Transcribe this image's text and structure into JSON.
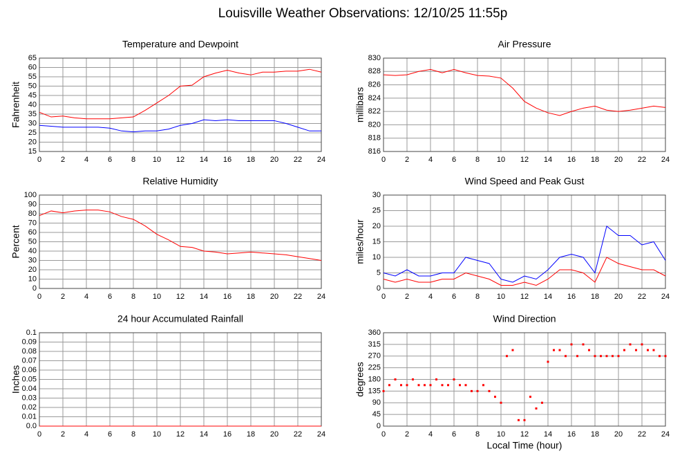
{
  "title": "Louisville Weather Observations: 12/10/25 11:55p",
  "chart_data": [
    {
      "type": "line",
      "title": "Temperature and Dewpoint",
      "ylabel": "Fahrenheit",
      "x": [
        0,
        1,
        2,
        3,
        4,
        5,
        6,
        7,
        8,
        9,
        10,
        11,
        12,
        13,
        14,
        15,
        16,
        17,
        18,
        19,
        20,
        21,
        22,
        23,
        24
      ],
      "series": [
        {
          "color": "#ff0000",
          "values": [
            36,
            33.5,
            34,
            33,
            32.5,
            32.5,
            32.5,
            33,
            33.5,
            37,
            41,
            45,
            50,
            50.5,
            55,
            57,
            58.5,
            57,
            56,
            57.5,
            57.5,
            58,
            58,
            59,
            57.5
          ]
        },
        {
          "color": "#0000ff",
          "values": [
            29,
            28.5,
            28,
            28,
            28,
            28,
            27.5,
            26,
            25.5,
            26,
            26,
            27,
            29,
            30,
            32,
            31.5,
            32,
            31.5,
            31.5,
            31.5,
            31.5,
            30,
            28,
            26,
            26
          ]
        }
      ],
      "xlim": [
        0,
        24
      ],
      "xticks": [
        0,
        2,
        4,
        6,
        8,
        10,
        12,
        14,
        16,
        18,
        20,
        22,
        24
      ],
      "ylim": [
        15,
        65
      ],
      "yticks": [
        15,
        20,
        25,
        30,
        35,
        40,
        45,
        50,
        55,
        60,
        65
      ],
      "grid": true
    },
    {
      "type": "line",
      "title": "Air Pressure",
      "ylabel": "millibars",
      "x": [
        0,
        1,
        2,
        3,
        4,
        5,
        6,
        7,
        8,
        9,
        10,
        11,
        12,
        13,
        14,
        15,
        16,
        17,
        18,
        19,
        20,
        21,
        22,
        23,
        24
      ],
      "series": [
        {
          "color": "#ff0000",
          "values": [
            827.5,
            827.4,
            827.5,
            828,
            828.3,
            827.8,
            828.3,
            827.8,
            827.4,
            827.3,
            827,
            825.5,
            823.5,
            822.5,
            821.8,
            821.4,
            822,
            822.5,
            822.8,
            822.2,
            822,
            822.2,
            822.5,
            822.8,
            822.6
          ]
        }
      ],
      "xlim": [
        0,
        24
      ],
      "xticks": [
        0,
        2,
        4,
        6,
        8,
        10,
        12,
        14,
        16,
        18,
        20,
        22,
        24
      ],
      "ylim": [
        816,
        830
      ],
      "yticks": [
        816,
        818,
        820,
        822,
        824,
        826,
        828,
        830
      ],
      "grid": true
    },
    {
      "type": "line",
      "title": "Relative Humidity",
      "ylabel": "Percent",
      "x": [
        0,
        1,
        2,
        3,
        4,
        5,
        6,
        7,
        8,
        9,
        10,
        11,
        12,
        13,
        14,
        15,
        16,
        17,
        18,
        19,
        20,
        21,
        22,
        23,
        24
      ],
      "series": [
        {
          "color": "#ff0000",
          "values": [
            78,
            83,
            81,
            83,
            84,
            84,
            82,
            77,
            74,
            67,
            58,
            52,
            45,
            44,
            40,
            39,
            37,
            38,
            39,
            38,
            37,
            36,
            34,
            32,
            30
          ]
        }
      ],
      "xlim": [
        0,
        24
      ],
      "xticks": [
        0,
        2,
        4,
        6,
        8,
        10,
        12,
        14,
        16,
        18,
        20,
        22,
        24
      ],
      "ylim": [
        0,
        100
      ],
      "yticks": [
        0,
        10,
        20,
        30,
        40,
        50,
        60,
        70,
        80,
        90,
        100
      ],
      "grid": true
    },
    {
      "type": "line",
      "title": "Wind Speed and Peak Gust",
      "ylabel": "miles/hour",
      "x": [
        0,
        1,
        2,
        3,
        4,
        5,
        6,
        7,
        8,
        9,
        10,
        11,
        12,
        13,
        14,
        15,
        16,
        17,
        18,
        19,
        20,
        21,
        22,
        23,
        24
      ],
      "series": [
        {
          "color": "#0000ff",
          "values": [
            5,
            4,
            6,
            4,
            4,
            5,
            5,
            10,
            9,
            8,
            3,
            2,
            4,
            3,
            6,
            10,
            11,
            10,
            5,
            20,
            17,
            17,
            14,
            15,
            9
          ]
        },
        {
          "color": "#ff0000",
          "values": [
            3,
            2,
            3,
            2,
            2,
            3,
            3,
            5,
            4,
            3,
            1,
            1,
            2,
            1,
            3,
            6,
            6,
            5,
            2,
            10,
            8,
            7,
            6,
            6,
            4
          ]
        }
      ],
      "xlim": [
        0,
        24
      ],
      "xticks": [
        0,
        2,
        4,
        6,
        8,
        10,
        12,
        14,
        16,
        18,
        20,
        22,
        24
      ],
      "ylim": [
        0,
        30
      ],
      "yticks": [
        0,
        5,
        10,
        15,
        20,
        25,
        30
      ],
      "grid": true
    },
    {
      "type": "line",
      "title": "24 hour Accumulated Rainfall",
      "ylabel": "Inches",
      "x": [
        0,
        1,
        2,
        3,
        4,
        5,
        6,
        7,
        8,
        9,
        10,
        11,
        12,
        13,
        14,
        15,
        16,
        17,
        18,
        19,
        20,
        21,
        22,
        23,
        24
      ],
      "series": [
        {
          "color": "#ff0000",
          "values": [
            0,
            0,
            0,
            0,
            0,
            0,
            0,
            0,
            0,
            0,
            0,
            0,
            0,
            0,
            0,
            0,
            0,
            0,
            0,
            0,
            0,
            0,
            0,
            0,
            0
          ]
        }
      ],
      "xlim": [
        0,
        24
      ],
      "xticks": [
        0,
        2,
        4,
        6,
        8,
        10,
        12,
        14,
        16,
        18,
        20,
        22,
        24
      ],
      "ylim": [
        0,
        0.1
      ],
      "yticks": [
        {
          "value": 0,
          "label": "0.0"
        },
        0.01,
        0.02,
        0.03,
        0.04,
        0.05,
        0.06,
        0.07,
        0.08,
        0.09,
        0.1
      ],
      "grid": true
    },
    {
      "type": "scatter",
      "title": "Wind Direction",
      "ylabel": "degrees",
      "xlabel": "Local Time (hour)",
      "x": [
        0,
        0.5,
        1,
        1.5,
        2,
        2.5,
        3,
        3.5,
        4,
        4.5,
        5,
        5.5,
        6,
        6.5,
        7,
        7.5,
        8,
        8.5,
        9,
        9.5,
        10,
        10.5,
        11,
        11.5,
        12,
        12.5,
        13,
        13.5,
        14,
        14.5,
        15,
        15.5,
        16,
        16.5,
        17,
        17.5,
        18,
        18.5,
        19,
        19.5,
        20,
        20.5,
        21,
        21.5,
        22,
        22.5,
        23,
        23.5,
        24
      ],
      "series": [
        {
          "color": "#ff0000",
          "values": [
            135,
            158,
            180,
            158,
            158,
            180,
            158,
            158,
            158,
            180,
            158,
            158,
            180,
            158,
            158,
            135,
            135,
            158,
            135,
            113,
            90,
            270,
            293,
            23,
            23,
            113,
            68,
            90,
            248,
            293,
            293,
            270,
            315,
            270,
            315,
            293,
            270,
            270,
            270,
            270,
            270,
            293,
            315,
            293,
            315,
            293,
            293,
            270,
            270
          ]
        }
      ],
      "xlim": [
        0,
        24
      ],
      "xticks": [
        0,
        2,
        4,
        6,
        8,
        10,
        12,
        14,
        16,
        18,
        20,
        22,
        24
      ],
      "ylim": [
        0,
        360
      ],
      "yticks": [
        0,
        45,
        90,
        135,
        180,
        225,
        270,
        315,
        360
      ],
      "grid": true
    }
  ]
}
